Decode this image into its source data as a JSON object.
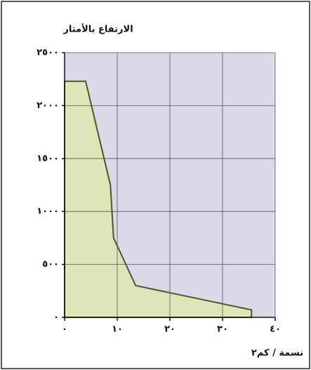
{
  "chart_data": {
    "type": "area",
    "y_label": "الارتفاع بالأمتار",
    "x_label": "نسمة / كم٢",
    "x": [
      0,
      0,
      4,
      8.7,
      9.3,
      13.5,
      35.5,
      35.5
    ],
    "series": [
      {
        "color": "#dfe5b9",
        "line_color": "#4b5a1e",
        "values": [
          0,
          2230,
          2230,
          1250,
          750,
          300,
          70,
          0
        ]
      }
    ],
    "xlim": [
      0,
      40
    ],
    "ylim": [
      0,
      2500
    ],
    "xticks": [
      {
        "value": 0,
        "label": "٠"
      },
      {
        "value": 10,
        "label": "١٠"
      },
      {
        "value": 20,
        "label": "٢٠"
      },
      {
        "value": 30,
        "label": "٣٠"
      },
      {
        "value": 40,
        "label": "٤٠"
      }
    ],
    "yticks": [
      {
        "value": 0,
        "label": "٠"
      },
      {
        "value": 500,
        "label": "٥٠٠"
      },
      {
        "value": 1000,
        "label": "١٠٠٠"
      },
      {
        "value": 1500,
        "label": "١٥٠٠"
      },
      {
        "value": 2000,
        "label": "٢٠٠٠"
      },
      {
        "value": 2500,
        "label": "٢٥٠٠"
      }
    ],
    "grid": true
  }
}
